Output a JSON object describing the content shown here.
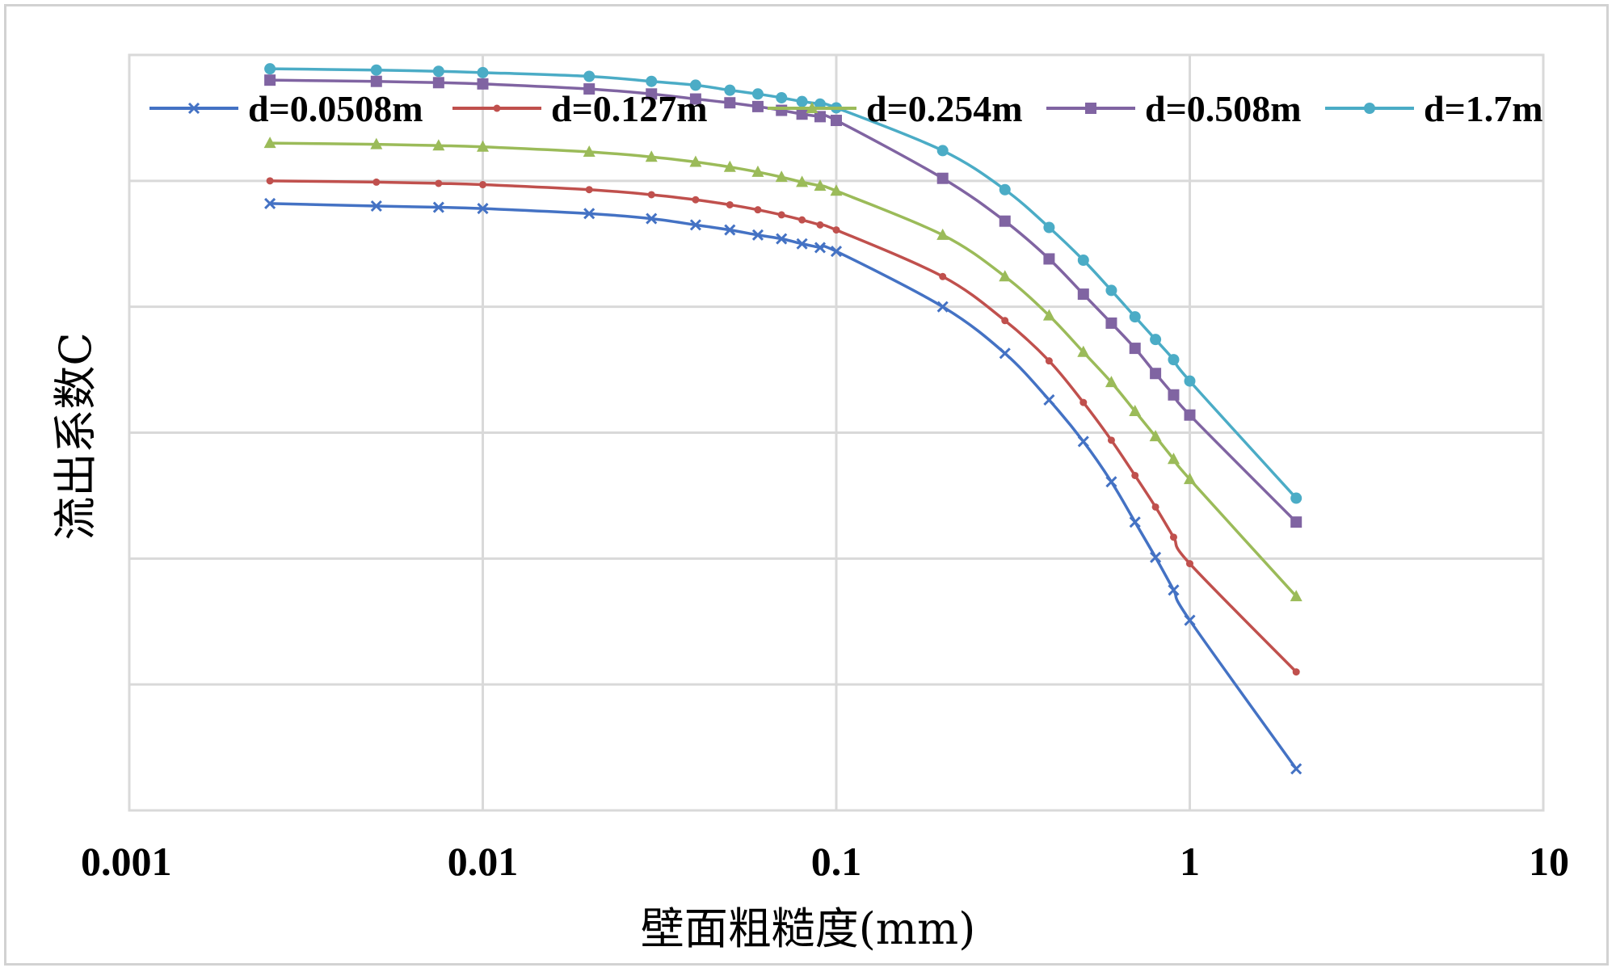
{
  "chart_data": {
    "type": "line",
    "title": "",
    "xlabel": "壁面粗糙度(mm)",
    "ylabel": "流出系数C",
    "x_scale": "log",
    "xlim": [
      0.001,
      10
    ],
    "ylim": [
      0,
      6
    ],
    "x_tick_labels": [
      "0.001",
      "0.01",
      "0.1",
      "1",
      "10"
    ],
    "y_tick_labels": [],
    "grid": true,
    "legend_position": "top",
    "x": [
      0.0025,
      0.005,
      0.0075,
      0.01,
      0.02,
      0.03,
      0.04,
      0.05,
      0.06,
      0.07,
      0.08,
      0.09,
      0.1,
      0.2,
      0.3,
      0.4,
      0.5,
      0.6,
      0.7,
      0.8,
      0.9,
      1,
      2
    ],
    "series": [
      {
        "name": "d=0.0508m",
        "color": "#4472c4",
        "marker": "x",
        "values": [
          4.82,
          4.8,
          4.79,
          4.78,
          4.74,
          4.7,
          4.65,
          4.61,
          4.57,
          4.54,
          4.5,
          4.47,
          4.44,
          4.0,
          3.63,
          3.26,
          2.93,
          2.61,
          2.29,
          2.01,
          1.75,
          1.51,
          0.33
        ]
      },
      {
        "name": "d=0.127m",
        "color": "#c0504d",
        "marker": "dot",
        "values": [
          5.0,
          4.99,
          4.98,
          4.97,
          4.93,
          4.89,
          4.85,
          4.81,
          4.77,
          4.73,
          4.69,
          4.65,
          4.61,
          4.24,
          3.89,
          3.57,
          3.24,
          2.94,
          2.66,
          2.41,
          2.17,
          1.96,
          1.1
        ]
      },
      {
        "name": "d=0.254m",
        "color": "#9bbb59",
        "marker": "triangle",
        "values": [
          5.3,
          5.29,
          5.28,
          5.27,
          5.23,
          5.19,
          5.15,
          5.11,
          5.07,
          5.03,
          4.99,
          4.96,
          4.92,
          4.57,
          4.24,
          3.93,
          3.64,
          3.4,
          3.17,
          2.97,
          2.79,
          2.63,
          1.7
        ]
      },
      {
        "name": "d=0.508m",
        "color": "#8064a2",
        "marker": "square",
        "values": [
          5.8,
          5.79,
          5.78,
          5.77,
          5.73,
          5.69,
          5.65,
          5.62,
          5.59,
          5.56,
          5.53,
          5.51,
          5.48,
          5.02,
          4.68,
          4.38,
          4.1,
          3.87,
          3.67,
          3.47,
          3.3,
          3.14,
          2.29
        ]
      },
      {
        "name": "d=1.7m",
        "color": "#4bacc6",
        "marker": "circle",
        "values": [
          5.89,
          5.88,
          5.87,
          5.86,
          5.83,
          5.79,
          5.76,
          5.72,
          5.69,
          5.66,
          5.63,
          5.61,
          5.58,
          5.24,
          4.93,
          4.63,
          4.37,
          4.13,
          3.92,
          3.74,
          3.58,
          3.41,
          2.48
        ]
      }
    ]
  }
}
